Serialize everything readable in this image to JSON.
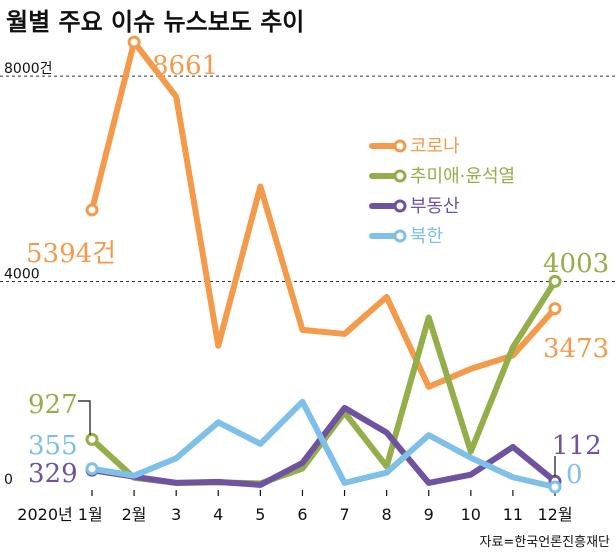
{
  "chart_data": {
    "type": "line",
    "title": "월별 주요 이슈 뉴스보도 추이",
    "source": "자료=한국언론진흥재단",
    "y_ticks": [
      {
        "value": 8000,
        "label": "8000건"
      },
      {
        "value": 4000,
        "label": "4000"
      },
      {
        "value": 0,
        "label": "0"
      }
    ],
    "ylim": [
      0,
      8800
    ],
    "categories": [
      "2020년 1월",
      "2월",
      "3",
      "4",
      "5",
      "6",
      "7",
      "8",
      "9",
      "10",
      "11",
      "12월"
    ],
    "series": [
      {
        "name": "코로나",
        "color": "#F39A4B",
        "values": [
          5394,
          8661,
          7600,
          2750,
          5850,
          3060,
          2980,
          3700,
          1950,
          2300,
          2560,
          3473
        ],
        "first_label": "5394건",
        "peak_label": "8661",
        "last_label": "3473"
      },
      {
        "name": "추미애·윤석열",
        "color": "#94AE4A",
        "values": [
          927,
          180,
          80,
          90,
          70,
          360,
          1450,
          400,
          3300,
          690,
          2720,
          4003
        ],
        "first_label": "927",
        "last_label": "4003"
      },
      {
        "name": "부동산",
        "color": "#6F53A1",
        "values": [
          329,
          200,
          80,
          100,
          40,
          470,
          1540,
          1060,
          80,
          240,
          780,
          112
        ],
        "first_label": "329",
        "last_label": "112"
      },
      {
        "name": "북한",
        "color": "#7FC0E8",
        "values": [
          355,
          220,
          560,
          1260,
          840,
          1660,
          80,
          280,
          1010,
          570,
          190,
          0
        ],
        "first_label": "355",
        "last_label": "0"
      }
    ]
  }
}
